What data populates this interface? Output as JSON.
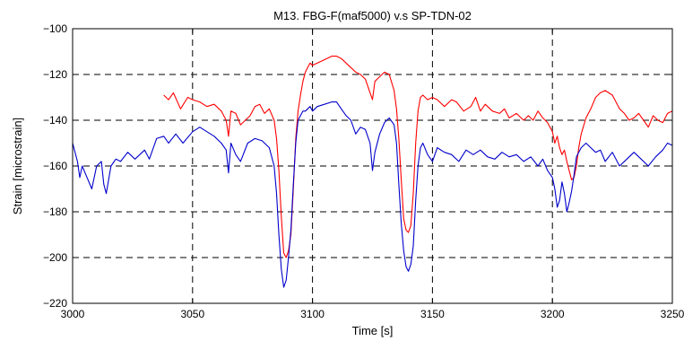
{
  "chart_data": {
    "type": "line",
    "title": "M13. FBG-F(maf5000) v.s SP-TDN-02",
    "xlabel": "Time [s]",
    "ylabel": "Strain [microstrain]",
    "xlim": [
      3000,
      3250
    ],
    "ylim": [
      -220,
      -100
    ],
    "xticks": [
      3000,
      3050,
      3100,
      3150,
      3200,
      3250
    ],
    "yticks": [
      -100,
      -120,
      -140,
      -160,
      -180,
      -200,
      -220
    ],
    "xtick_labels": [
      "3000",
      "3050",
      "3100",
      "3150",
      "3200",
      "3250"
    ],
    "ytick_labels": [
      "−100",
      "−120",
      "−140",
      "−160",
      "−180",
      "−200",
      "−220"
    ],
    "grid": true,
    "series": [
      {
        "color": "#ff0000",
        "x": [
          3038,
          3040,
          3042,
          3045,
          3048,
          3050,
          3053,
          3056,
          3059,
          3062,
          3064,
          3065,
          3066,
          3068,
          3070,
          3072,
          3074,
          3076,
          3078,
          3080,
          3082,
          3084,
          3085,
          3086,
          3087,
          3088,
          3089,
          3090,
          3091,
          3092,
          3093,
          3094,
          3095,
          3096,
          3097,
          3098,
          3099,
          3100,
          3102,
          3104,
          3106,
          3108,
          3110,
          3112,
          3114,
          3116,
          3118,
          3120,
          3122,
          3124,
          3125,
          3126,
          3128,
          3130,
          3132,
          3134,
          3135,
          3136,
          3137,
          3138,
          3139,
          3140,
          3141,
          3142,
          3143,
          3144,
          3145,
          3146,
          3148,
          3150,
          3152,
          3155,
          3158,
          3160,
          3163,
          3166,
          3168,
          3170,
          3172,
          3175,
          3178,
          3180,
          3182,
          3185,
          3188,
          3190,
          3192,
          3194,
          3196,
          3198,
          3200,
          3201,
          3202,
          3203,
          3204,
          3205,
          3206,
          3207,
          3208,
          3209,
          3210,
          3211,
          3212,
          3214,
          3216,
          3218,
          3220,
          3222,
          3225,
          3228,
          3230,
          3232,
          3234,
          3236,
          3238,
          3240,
          3242,
          3244,
          3246,
          3248,
          3250
        ],
        "y": [
          -129,
          -131,
          -128,
          -135,
          -130,
          -131,
          -132,
          -134,
          -133,
          -136,
          -140,
          -147,
          -136,
          -137,
          -142,
          -140,
          -138,
          -134,
          -133,
          -137,
          -135,
          -140,
          -148,
          -162,
          -182,
          -198,
          -200,
          -197,
          -190,
          -170,
          -148,
          -136,
          -129,
          -123,
          -119,
          -117,
          -115,
          -116,
          -115,
          -114,
          -113,
          -112,
          -112,
          -113,
          -115,
          -117,
          -119,
          -120,
          -122,
          -128,
          -131,
          -123,
          -121,
          -119,
          -120,
          -127,
          -135,
          -148,
          -166,
          -183,
          -188,
          -189,
          -186,
          -172,
          -150,
          -136,
          -130,
          -129,
          -131,
          -130,
          -131,
          -134,
          -131,
          -132,
          -136,
          -134,
          -130,
          -136,
          -133,
          -136,
          -137,
          -135,
          -139,
          -137,
          -140,
          -138,
          -140,
          -136,
          -139,
          -141,
          -145,
          -150,
          -147,
          -152,
          -155,
          -153,
          -158,
          -162,
          -166,
          -165,
          -160,
          -152,
          -146,
          -139,
          -135,
          -130,
          -128,
          -127,
          -129,
          -135,
          -137,
          -140,
          -139,
          -137,
          -140,
          -143,
          -138,
          -140,
          -141,
          -137,
          -136
        ]
      },
      {
        "color": "#0000cc",
        "x": [
          3000,
          3002,
          3003,
          3004,
          3006,
          3008,
          3010,
          3012,
          3013,
          3014,
          3016,
          3018,
          3020,
          3023,
          3026,
          3028,
          3030,
          3032,
          3035,
          3038,
          3040,
          3043,
          3046,
          3050,
          3053,
          3056,
          3059,
          3062,
          3064,
          3065,
          3066,
          3068,
          3070,
          3073,
          3076,
          3079,
          3082,
          3084,
          3085,
          3086,
          3087,
          3088,
          3089,
          3090,
          3091,
          3092,
          3093,
          3094,
          3095,
          3096,
          3097,
          3098,
          3099,
          3100,
          3102,
          3105,
          3108,
          3110,
          3112,
          3114,
          3116,
          3118,
          3120,
          3122,
          3124,
          3125,
          3126,
          3128,
          3130,
          3132,
          3134,
          3135,
          3136,
          3137,
          3138,
          3139,
          3140,
          3141,
          3142,
          3143,
          3144,
          3145,
          3146,
          3148,
          3150,
          3152,
          3155,
          3158,
          3161,
          3164,
          3167,
          3170,
          3173,
          3176,
          3179,
          3182,
          3185,
          3188,
          3191,
          3194,
          3196,
          3198,
          3200,
          3201,
          3202,
          3203,
          3204,
          3205,
          3206,
          3207,
          3208,
          3209,
          3210,
          3212,
          3214,
          3216,
          3218,
          3220,
          3222,
          3225,
          3228,
          3231,
          3234,
          3237,
          3240,
          3243,
          3246,
          3248,
          3250
        ],
        "y": [
          -150,
          -158,
          -165,
          -160,
          -165,
          -170,
          -160,
          -158,
          -168,
          -172,
          -160,
          -157,
          -158,
          -154,
          -157,
          -155,
          -153,
          -157,
          -148,
          -147,
          -150,
          -146,
          -150,
          -145,
          -143,
          -145,
          -147,
          -150,
          -153,
          -163,
          -150,
          -155,
          -158,
          -150,
          -148,
          -149,
          -152,
          -160,
          -172,
          -190,
          -205,
          -213,
          -210,
          -200,
          -188,
          -168,
          -150,
          -140,
          -138,
          -136,
          -136,
          -135,
          -134,
          -136,
          -134,
          -133,
          -132,
          -132,
          -135,
          -138,
          -140,
          -146,
          -143,
          -144,
          -150,
          -162,
          -154,
          -146,
          -141,
          -139,
          -142,
          -150,
          -168,
          -185,
          -197,
          -204,
          -206,
          -203,
          -195,
          -175,
          -160,
          -152,
          -150,
          -155,
          -158,
          -152,
          -154,
          -155,
          -158,
          -153,
          -155,
          -153,
          -156,
          -157,
          -154,
          -156,
          -155,
          -158,
          -156,
          -160,
          -157,
          -162,
          -165,
          -170,
          -178,
          -175,
          -167,
          -172,
          -180,
          -176,
          -171,
          -164,
          -156,
          -152,
          -150,
          -152,
          -154,
          -153,
          -158,
          -154,
          -160,
          -157,
          -154,
          -157,
          -160,
          -156,
          -153,
          -150,
          -151
        ]
      }
    ]
  }
}
